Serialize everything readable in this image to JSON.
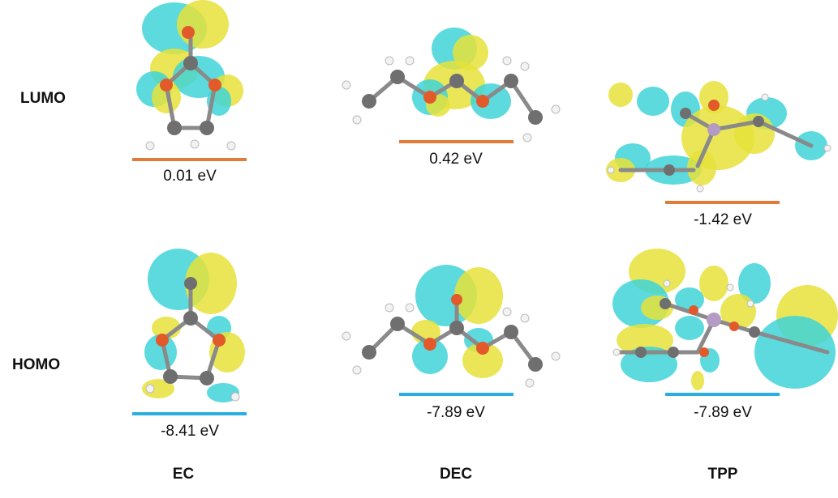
{
  "rows": {
    "lumo": "LUMO",
    "homo": "HOMO"
  },
  "molecules": [
    {
      "name": "EC",
      "lumo_energy": "0.01 eV",
      "homo_energy": "-8.41 eV"
    },
    {
      "name": "DEC",
      "lumo_energy": "0.42 eV",
      "homo_energy": "-7.89 eV"
    },
    {
      "name": "TPP",
      "lumo_energy": "-1.42 eV",
      "homo_energy": "-7.89 eV"
    }
  ],
  "colors": {
    "lumo_level": "#e07b3c",
    "homo_level": "#2aaee0",
    "orbital_positive": "#40d4d8",
    "orbital_negative": "#e6e23a"
  }
}
